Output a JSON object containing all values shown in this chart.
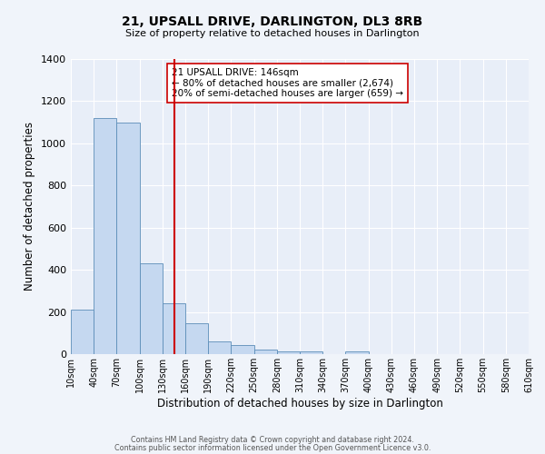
{
  "title": "21, UPSALL DRIVE, DARLINGTON, DL3 8RB",
  "subtitle": "Size of property relative to detached houses in Darlington",
  "xlabel": "Distribution of detached houses by size in Darlington",
  "ylabel": "Number of detached properties",
  "bar_color": "#c5d8f0",
  "bar_edge_color": "#5b8db8",
  "background_color": "#e8eef8",
  "grid_color": "#ffffff",
  "vline_x": 146,
  "vline_color": "#cc0000",
  "annotation_line1": "21 UPSALL DRIVE: 146sqm",
  "annotation_line2": "← 80% of detached houses are smaller (2,674)",
  "annotation_line3": "20% of semi-detached houses are larger (659) →",
  "annotation_box_color": "#ffffff",
  "annotation_box_edge_color": "#cc0000",
  "bin_edges": [
    10,
    40,
    70,
    100,
    130,
    160,
    190,
    220,
    250,
    280,
    310,
    340,
    370,
    400,
    430,
    460,
    490,
    520,
    550,
    580,
    610
  ],
  "bar_heights": [
    210,
    1120,
    1100,
    430,
    240,
    145,
    62,
    45,
    22,
    12,
    15,
    0,
    15,
    0,
    0,
    0,
    0,
    0,
    0,
    0
  ],
  "ylim": [
    0,
    1400
  ],
  "yticks": [
    0,
    200,
    400,
    600,
    800,
    1000,
    1200,
    1400
  ],
  "footnote1": "Contains HM Land Registry data © Crown copyright and database right 2024.",
  "footnote2": "Contains public sector information licensed under the Open Government Licence v3.0."
}
